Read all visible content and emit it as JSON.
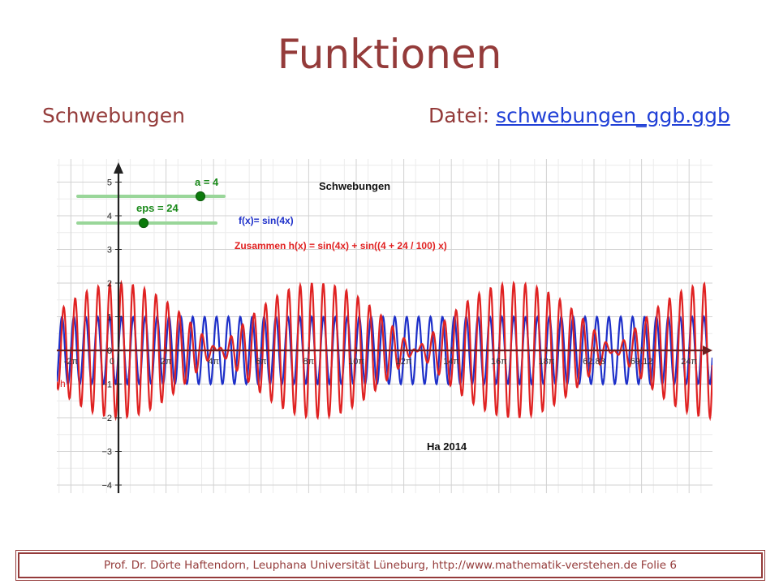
{
  "slide": {
    "title": "Funktionen",
    "subtitle": "Schwebungen",
    "file_label": "Datei:",
    "file_link": "schwebungen_ggb.ggb",
    "footer": "Prof. Dr. Dörte Haftendorn, Leuphana Universität Lüneburg,  http://www.mathematik-verstehen.de    Folie 6",
    "colors": {
      "title": "#943b3a",
      "link": "#1f3fd6"
    }
  },
  "chart_data": {
    "type": "line",
    "title": "Schwebungen",
    "annotation": "Ha 2014",
    "xlim_label": [
      "-2π",
      "24π"
    ],
    "ylim": [
      -4,
      5
    ],
    "grid": true,
    "x_tick_labels": [
      "-2π",
      "0",
      "2π",
      "4π",
      "6π",
      "8π",
      "10π",
      "12π",
      "14π",
      "16π",
      "18π",
      "62.83",
      "69.12",
      "24π"
    ],
    "y_tick_labels": [
      "5",
      "4",
      "3",
      "2",
      "1",
      "0",
      "−1",
      "−2",
      "−3",
      "−4"
    ],
    "sliders": [
      {
        "label": "a = 4",
        "value": 4
      },
      {
        "label": "eps = 24",
        "value": 24
      }
    ],
    "series": [
      {
        "name": "f(x)= sin(4x)",
        "color": "#1d2fc9",
        "formula": "sin(4x)"
      },
      {
        "name": "Zusammen h(x) =  sin(4x) + sin((4 + 24 / 100) x)",
        "color": "#e02222",
        "formula": "sin(4x) + sin(4.24x)"
      }
    ],
    "curve_label": "h"
  }
}
